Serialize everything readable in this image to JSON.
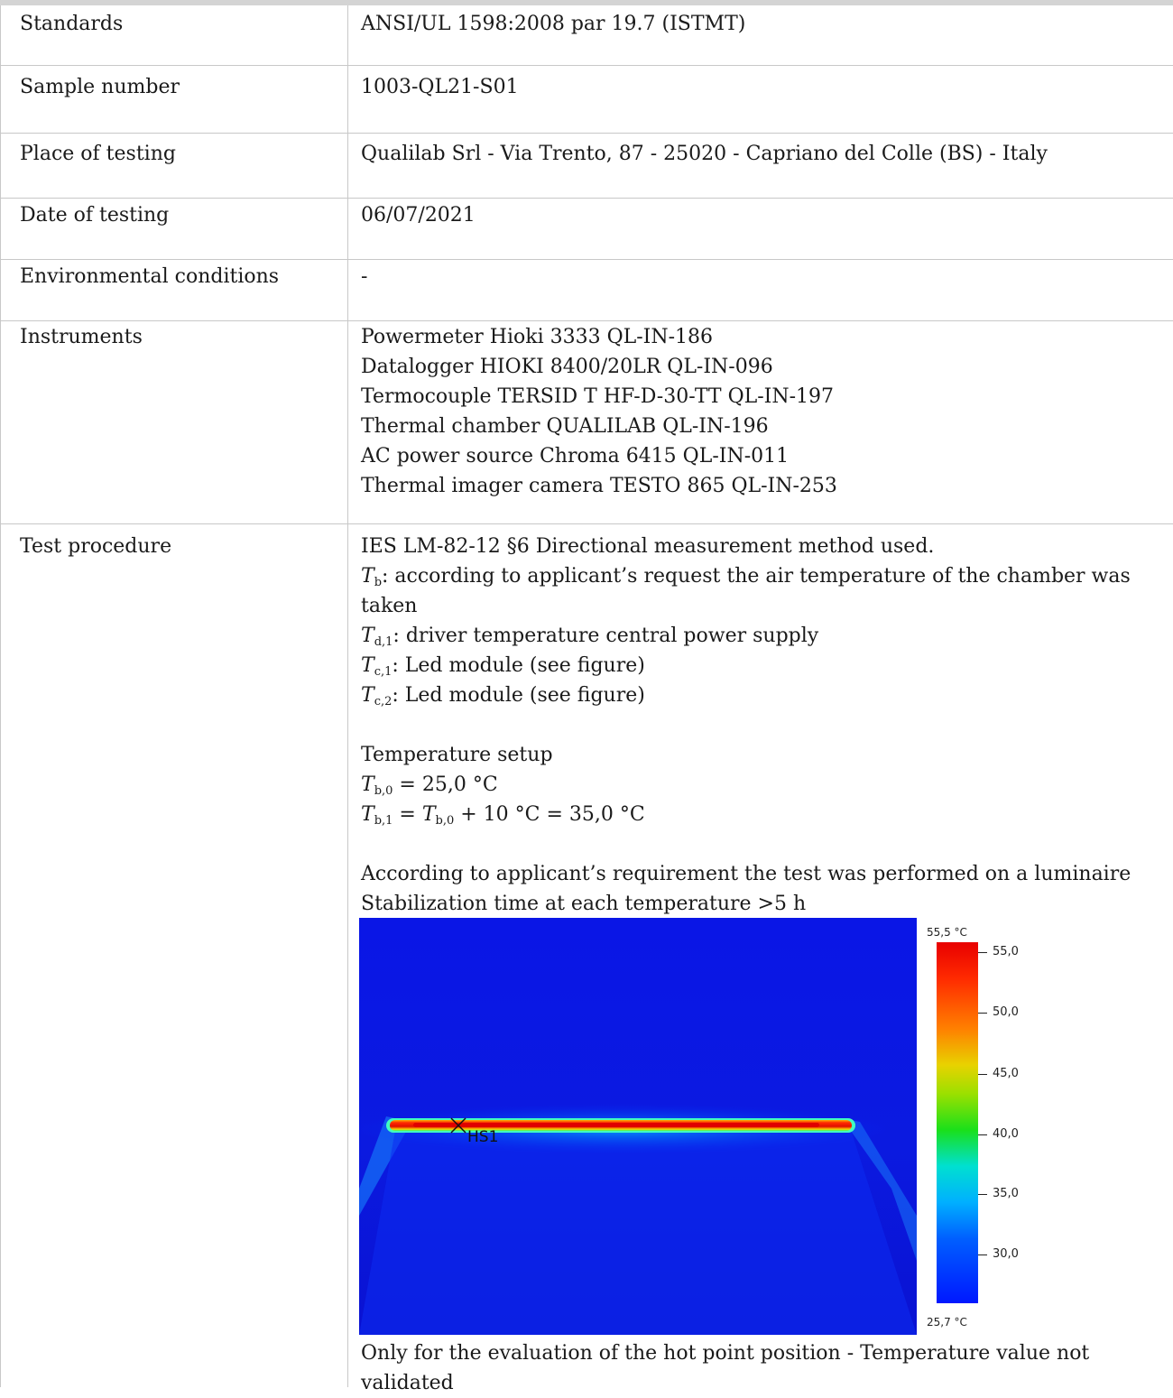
{
  "rows": [
    {
      "label": "Standards",
      "value": "ANSI/UL 1598:2008 par 19.7 (ISTMT)"
    },
    {
      "label": "Sample number",
      "value": "1003-QL21-S01"
    },
    {
      "label": "Place of testing",
      "value": "Qualilab Srl - Via Trento, 87 - 25020 - Capriano del Colle (BS) - Italy"
    },
    {
      "label": "Date of testing",
      "value": "06/07/2021"
    },
    {
      "label": "Environmental conditions",
      "value": "-"
    },
    {
      "label": "Instruments",
      "lines": [
        "Powermeter Hioki 3333 QL-IN-186",
        "Datalogger HIOKI 8400/20LR QL-IN-096",
        "Termocouple TERSID T HF-D-30-TT QL-IN-197",
        "Thermal chamber QUALILAB QL-IN-196",
        "AC power source Chroma 6415 QL-IN-011",
        "Thermal imager camera TESTO 865 QL-IN-253"
      ]
    },
    {
      "label": "Test procedure"
    }
  ],
  "procedure": {
    "method": "IES LM-82-12 §6 Directional measurement method used.",
    "tb_desc": ": according to applicant’s request the air temperature of the chamber was taken",
    "td1_desc": ": driver temperature central power supply",
    "tc1_desc": ": Led module (see figure)",
    "tc2_desc": ": Led module (see figure)",
    "setup_title": "Temperature setup",
    "tb0_value": " = 25,0 °C",
    "tb1_value": " + 10 °C = 35,0 °C",
    "requirement": "According to applicant’s requirement the test was performed on a luminaire",
    "stabilization": "Stabilization time at each temperature >5 h",
    "image_note": "Only for the evaluation of the hot point position - Temperature value not validated"
  },
  "symbols": {
    "T": "T",
    "b": "b",
    "d1": "d,1",
    "c1": "c,1",
    "c2": "c,2",
    "b0": "b,0",
    "b1": "b,1",
    "eq": " = "
  },
  "thermal_image": {
    "max_label": "55,5 °C",
    "min_label": "25,7 °C",
    "scale_ticks": [
      "55,0",
      "50,0",
      "45,0",
      "40,0",
      "35,0",
      "30,0"
    ],
    "marker_label": "HS1"
  }
}
